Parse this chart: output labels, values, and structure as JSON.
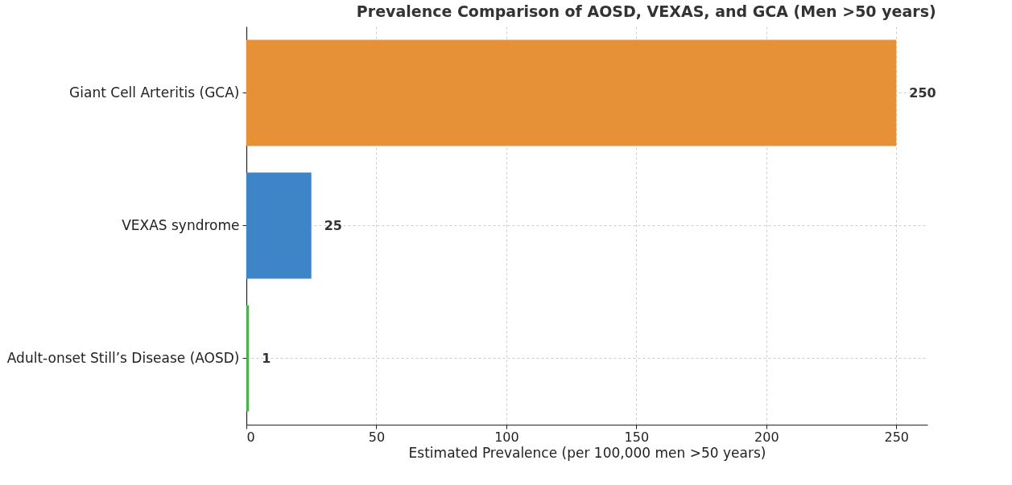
{
  "chart_data": {
    "type": "bar",
    "orientation": "horizontal",
    "title": "Prevalence Comparison of AOSD, VEXAS, and GCA (Men >50 years)",
    "xlabel": "Estimated Prevalence (per 100,000 men >50 years)",
    "categories": [
      "Giant Cell Arteritis (GCA)",
      "VEXAS syndrome",
      "Adult-onset Still’s Disease (AOSD)"
    ],
    "values": [
      250,
      25,
      1
    ],
    "colors": [
      "#e69138",
      "#3d85c6",
      "#4caf50"
    ],
    "xlim": [
      0,
      262
    ],
    "xticks": [
      0,
      50,
      100,
      150,
      200,
      250
    ],
    "grid": true,
    "data_labels": true
  }
}
